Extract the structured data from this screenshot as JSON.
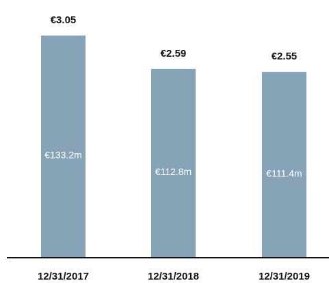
{
  "chart_data": {
    "type": "bar",
    "categories": [
      "12/31/2017",
      "12/31/2018",
      "12/31/2019"
    ],
    "values": [
      3.05,
      2.59,
      2.55
    ],
    "value_labels": [
      "€3.05",
      "€2.59",
      "€2.55"
    ],
    "inner_values": [
      133.2,
      112.8,
      111.4
    ],
    "inner_value_labels": [
      "€133.2m",
      "€112.8m",
      "€111.4m"
    ],
    "color": "#87a3b8"
  }
}
